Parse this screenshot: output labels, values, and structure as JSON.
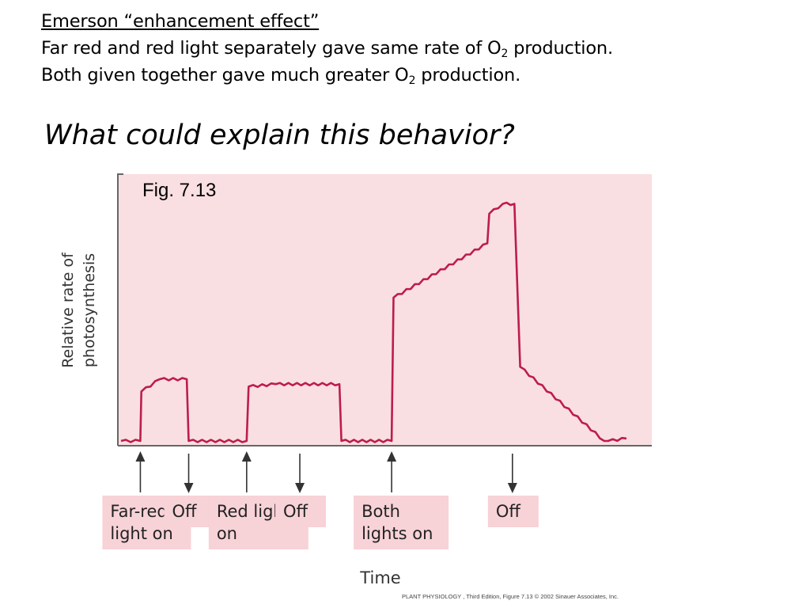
{
  "header": {
    "heading": "Emerson “enhancement effect”",
    "line2_pre": "Far red and red light separately gave same rate of O",
    "line2_sub": "2",
    "line2_post": " production.",
    "line3_pre": "Both given together gave much greater O",
    "line3_sub": "2",
    "line3_post": " production."
  },
  "question": "What could explain this behavior?",
  "fig_label": "Fig. 7.13",
  "credit": "PLANT PHYSIOLOGY , Third Edition, Figure 7.13  © 2002 Sinauer Associates, Inc.",
  "colors": {
    "plot_background": "#f9dfe2",
    "trace": "#bd1d4b",
    "label_box": "#f7d2d7",
    "axis": "#666666"
  },
  "chart_data": {
    "type": "line",
    "title": "",
    "xlabel": "Time",
    "ylabel": "Relative rate of photosynthesis",
    "ylim": [
      0,
      100
    ],
    "grid": false,
    "x": [
      0,
      2,
      2.1,
      4,
      6.8,
      7,
      13,
      13.2,
      16,
      22.6,
      22.8,
      28,
      28.2,
      37.9,
      38.1,
      39.5,
      40.7,
      41.3,
      50,
      50.4,
      52.3
    ],
    "series": [
      {
        "values": [
          0,
          0,
          20,
          25,
          25,
          0,
          0,
          22,
          23,
          23,
          0,
          0,
          58,
          80,
          92,
          96,
          96,
          30,
          0,
          0,
          1
        ]
      }
    ],
    "events": [
      {
        "x": 2.0,
        "direction": "on",
        "label": "Far-red light on"
      },
      {
        "x": 7.0,
        "direction": "off",
        "label": "Off"
      },
      {
        "x": 13.0,
        "direction": "on",
        "label": "Red light on"
      },
      {
        "x": 18.5,
        "direction": "off",
        "label": "Off"
      },
      {
        "x": 28.0,
        "direction": "on",
        "label": "Both lights on"
      },
      {
        "x": 40.5,
        "direction": "off",
        "label": "Off"
      }
    ],
    "event_labels": [
      [
        "Far-red",
        "light on"
      ],
      [
        "Off"
      ],
      [
        "Red light",
        "on"
      ],
      [
        "Off"
      ],
      [
        "Both",
        "lights on"
      ],
      [
        "Off"
      ]
    ]
  }
}
